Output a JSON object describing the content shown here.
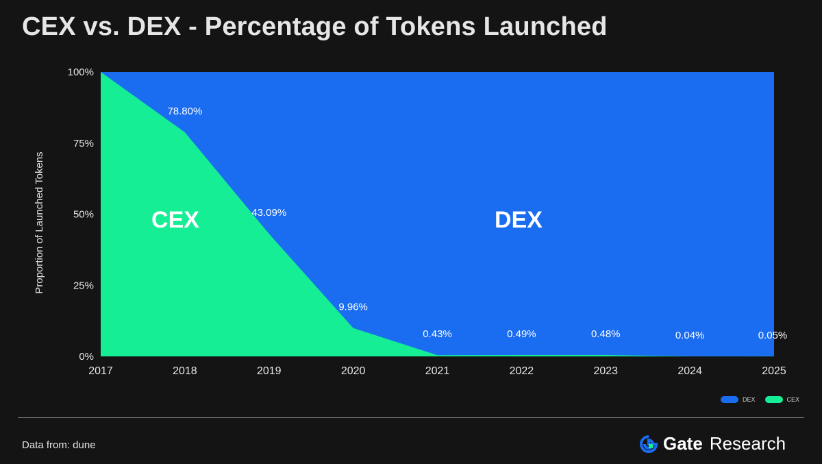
{
  "title": "CEX vs. DEX - Percentage of Tokens Launched",
  "source": "Data from: dune",
  "brand": {
    "name": "Gate",
    "suffix": "Research"
  },
  "colors": {
    "background": "#141414",
    "dex": "#1a6cf0",
    "cex": "#15ee94",
    "text": "#e6e6e6"
  },
  "chart_data": {
    "type": "area",
    "stacked": true,
    "percent": true,
    "x": [
      "2017",
      "2018",
      "2019",
      "2020",
      "2021",
      "2022",
      "2023",
      "2024",
      "2025"
    ],
    "series": [
      {
        "name": "CEX",
        "values": [
          100,
          78.8,
          43.09,
          9.96,
          0.43,
          0.49,
          0.48,
          0.04,
          0.05
        ]
      },
      {
        "name": "DEX",
        "values": [
          0,
          21.2,
          56.91,
          90.04,
          99.57,
          99.51,
          99.52,
          99.96,
          99.95
        ]
      }
    ],
    "data_labels": [
      "",
      "78.80%",
      "43.09%",
      "9.96%",
      "0.43%",
      "0.49%",
      "0.48%",
      "0.04%",
      "0.05%"
    ],
    "area_labels": {
      "cex": "CEX",
      "dex": "DEX"
    },
    "ylabel": "Proportion of Launched Tokens",
    "yticks": [
      "0%",
      "25%",
      "50%",
      "75%",
      "100%"
    ],
    "ylim": [
      0,
      100
    ],
    "legend": {
      "position": "bottom-right",
      "entries": [
        "DEX",
        "CEX"
      ]
    }
  }
}
